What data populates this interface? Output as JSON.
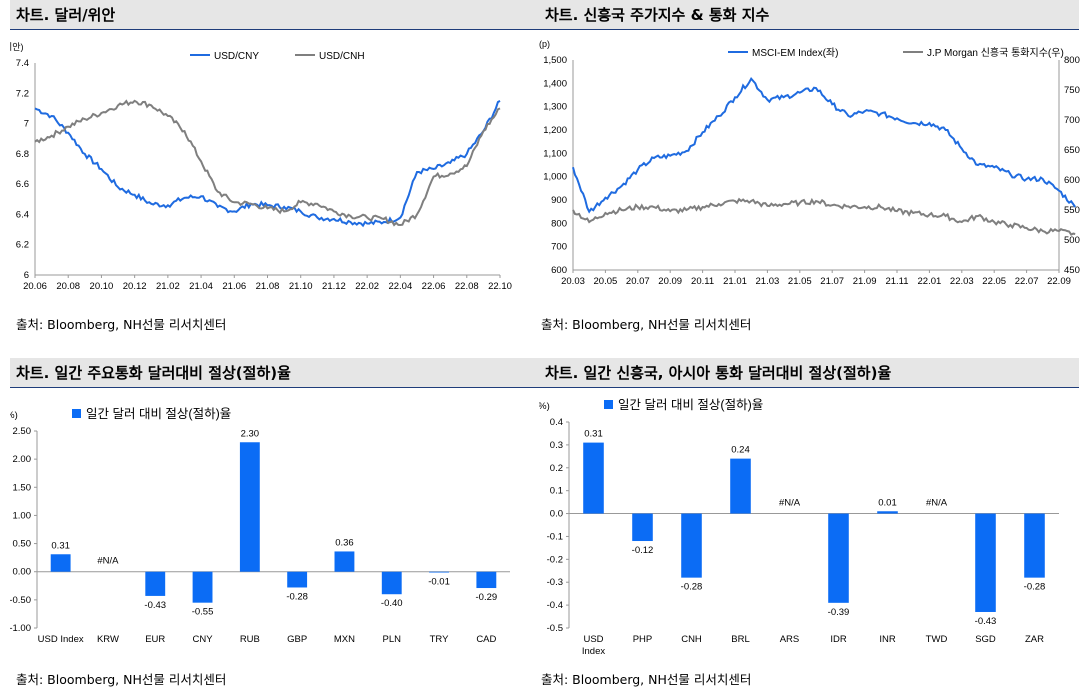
{
  "panels": [
    {
      "title": "차트. 달러/위안",
      "source": "출처: Bloomberg, NH선물 리서치센터"
    },
    {
      "title": "차트. 신흥국 주가지수 & 통화 지수",
      "source": "출처: Bloomberg, NH선물 리서치센터"
    },
    {
      "title": "차트. 일간 주요통화 달러대비 절상(절하)율",
      "source": "출처: Bloomberg, NH선물 리서치센터"
    },
    {
      "title": "차트. 일간 신흥국, 아시아 통화 달러대비 절상(절하)율",
      "source": "출처: Bloomberg, NH선물 리서치센터"
    }
  ],
  "colors": {
    "blue": "#1f6be0",
    "gray": "#7f7f7f",
    "bar": "#0b6cf5"
  },
  "chart_data": [
    {
      "type": "line",
      "ylabel": "(위안)",
      "ylim": [
        6,
        7.4
      ],
      "yticks": [
        "7.4",
        "7.2",
        "7",
        "6.8",
        "6.6",
        "6.4",
        "6.2",
        "6"
      ],
      "xticks": [
        "20.06",
        "20.08",
        "20.10",
        "20.12",
        "21.02",
        "21.04",
        "21.06",
        "21.08",
        "21.10",
        "21.12",
        "22.02",
        "22.04",
        "22.06",
        "22.08",
        "22.10"
      ],
      "grid": false,
      "legend": "top",
      "series": [
        {
          "name": "USD/CNY",
          "color": "#1f6be0",
          "x": [
            "20.06",
            "20.07",
            "20.08",
            "20.09",
            "20.10",
            "20.11",
            "20.12",
            "21.01",
            "21.02",
            "21.03",
            "21.04",
            "21.05",
            "21.06",
            "21.07",
            "21.08",
            "21.09",
            "21.10",
            "21.11",
            "21.12",
            "22.01",
            "22.02",
            "22.03",
            "22.04",
            "22.05",
            "22.06",
            "22.07",
            "22.08",
            "22.09",
            "22.10"
          ],
          "values": [
            7.1,
            7.05,
            6.94,
            6.8,
            6.7,
            6.58,
            6.53,
            6.47,
            6.46,
            6.51,
            6.52,
            6.45,
            6.42,
            6.47,
            6.46,
            6.45,
            6.42,
            6.38,
            6.37,
            6.35,
            6.34,
            6.35,
            6.38,
            6.68,
            6.7,
            6.74,
            6.8,
            6.95,
            7.15
          ]
        },
        {
          "name": "USD/CNH",
          "color": "#7f7f7f",
          "x": [
            "20.06",
            "20.07",
            "20.08",
            "20.09",
            "20.10",
            "20.11",
            "20.12",
            "21.01",
            "21.02",
            "21.03",
            "21.04",
            "21.05",
            "21.06",
            "21.07",
            "21.08",
            "21.09",
            "21.10",
            "21.11",
            "21.12",
            "22.01",
            "22.02",
            "22.03",
            "22.04",
            "22.05",
            "22.06",
            "22.07",
            "22.08",
            "22.09",
            "22.10"
          ],
          "values": [
            6.88,
            6.92,
            6.98,
            7.03,
            7.07,
            7.12,
            7.15,
            7.12,
            7.05,
            6.95,
            6.75,
            6.55,
            6.48,
            6.47,
            6.44,
            6.42,
            6.48,
            6.47,
            6.42,
            6.39,
            6.38,
            6.37,
            6.33,
            6.4,
            6.65,
            6.67,
            6.72,
            6.95,
            7.1
          ]
        }
      ]
    },
    {
      "type": "line",
      "ylabel": "(p)",
      "ylim": [
        600,
        1500
      ],
      "ylim_right": [
        450,
        800
      ],
      "yticks": [
        "1,500",
        "1,400",
        "1,300",
        "1,200",
        "1,100",
        "1,000",
        "900",
        "800",
        "700",
        "600"
      ],
      "yticks_right": [
        "800",
        "750",
        "700",
        "650",
        "600",
        "550",
        "500",
        "450"
      ],
      "xticks": [
        "20.03",
        "20.05",
        "20.07",
        "20.09",
        "20.11",
        "21.01",
        "21.03",
        "21.05",
        "21.07",
        "21.09",
        "21.11",
        "22.01",
        "22.03",
        "22.05",
        "22.07",
        "22.09"
      ],
      "grid": false,
      "legend": "top",
      "series": [
        {
          "name": "MSCI-EM Index(좌)",
          "color": "#1f6be0",
          "axis": "left",
          "x": [
            "20.03",
            "20.04",
            "20.05",
            "20.06",
            "20.07",
            "20.08",
            "20.09",
            "20.10",
            "20.11",
            "20.12",
            "21.01",
            "21.02",
            "21.03",
            "21.04",
            "21.05",
            "21.06",
            "21.07",
            "21.08",
            "21.09",
            "21.10",
            "21.11",
            "21.12",
            "22.01",
            "22.02",
            "22.03",
            "22.04",
            "22.05",
            "22.06",
            "22.07",
            "22.08",
            "22.09",
            "22.10"
          ],
          "values": [
            1040,
            850,
            910,
            960,
            1030,
            1080,
            1090,
            1110,
            1190,
            1260,
            1340,
            1420,
            1330,
            1340,
            1360,
            1380,
            1310,
            1260,
            1280,
            1270,
            1250,
            1230,
            1230,
            1200,
            1120,
            1050,
            1040,
            1010,
            990,
            990,
            940,
            870
          ]
        },
        {
          "name": "J.P Morgan 신흥국 통화지수(우)",
          "color": "#7f7f7f",
          "axis": "right",
          "x": [
            "20.03",
            "20.04",
            "20.05",
            "20.06",
            "20.07",
            "20.08",
            "20.09",
            "20.10",
            "20.11",
            "20.12",
            "21.01",
            "21.02",
            "21.03",
            "21.04",
            "21.05",
            "21.06",
            "21.07",
            "21.08",
            "21.09",
            "21.10",
            "21.11",
            "21.12",
            "22.01",
            "22.02",
            "22.03",
            "22.04",
            "22.05",
            "22.06",
            "22.07",
            "22.08",
            "22.09",
            "22.10"
          ],
          "values": [
            550,
            530,
            545,
            550,
            555,
            555,
            548,
            550,
            555,
            560,
            565,
            565,
            557,
            560,
            562,
            565,
            558,
            556,
            555,
            555,
            548,
            545,
            542,
            540,
            530,
            540,
            530,
            525,
            520,
            515,
            515,
            510
          ]
        }
      ]
    },
    {
      "type": "bar",
      "ylabel": "(%)",
      "ylim": [
        -1.0,
        2.5
      ],
      "yticks": [
        "2.50",
        "2.00",
        "1.50",
        "1.00",
        "0.50",
        "0.00",
        "-0.50",
        "-1.00"
      ],
      "legend": "top",
      "series": [
        {
          "name": "일간 달러 대비 절상(절하)율"
        }
      ],
      "categories": [
        "USD Index",
        "KRW",
        "EUR",
        "CNY",
        "RUB",
        "GBP",
        "MXN",
        "PLN",
        "TRY",
        "CAD"
      ],
      "values": [
        0.31,
        null,
        -0.43,
        -0.55,
        2.3,
        -0.28,
        0.36,
        -0.4,
        -0.01,
        -0.29
      ],
      "labels": [
        "0.31",
        "#N/A",
        "-0.43",
        "-0.55",
        "2.30",
        "-0.28",
        "0.36",
        "-0.40",
        "-0.01",
        "-0.29"
      ]
    },
    {
      "type": "bar",
      "ylabel": "(%)",
      "ylim": [
        -0.5,
        0.4
      ],
      "yticks": [
        "0.4",
        "0.3",
        "0.2",
        "0.1",
        "0.0",
        "-0.1",
        "-0.2",
        "-0.3",
        "-0.4",
        "-0.5"
      ],
      "legend": "top",
      "series": [
        {
          "name": "일간 달러 대비 절상(절하)율"
        }
      ],
      "categories": [
        "USD\nIndex",
        "PHP",
        "CNH",
        "BRL",
        "ARS",
        "IDR",
        "INR",
        "TWD",
        "SGD",
        "ZAR"
      ],
      "values": [
        0.31,
        -0.12,
        -0.28,
        0.24,
        null,
        -0.39,
        0.01,
        null,
        -0.43,
        -0.28
      ],
      "labels": [
        "0.31",
        "-0.12",
        "-0.28",
        "0.24",
        "#N/A",
        "-0.39",
        "0.01",
        "#N/A",
        "-0.43",
        "-0.28"
      ]
    }
  ]
}
